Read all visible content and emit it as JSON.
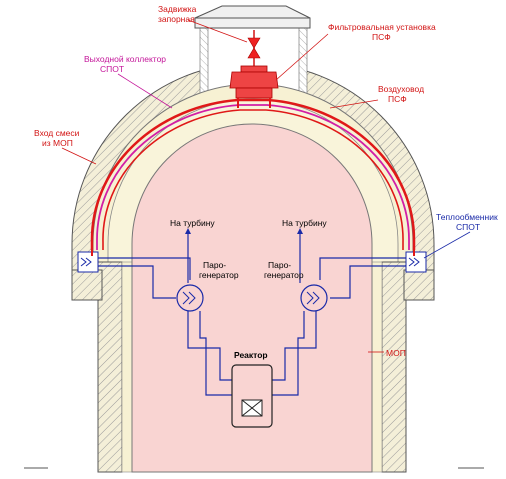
{
  "labels": {
    "valve": [
      "Задвижка",
      "запорная"
    ],
    "filter_unit": [
      "Фильтровальная установка",
      "ПСФ"
    ],
    "outlet_collector": [
      "Выходной коллектор",
      "СПОТ"
    ],
    "air_duct": [
      "Воздуховод",
      "ПСФ"
    ],
    "mixture_inlet": [
      "Вход смеси",
      "из МОП"
    ],
    "heat_exchanger": [
      "Теплообменник",
      "СПОТ"
    ],
    "to_turbine_left": "На турбину",
    "to_turbine_right": "На турбину",
    "steam_gen_left": [
      "Паро-",
      "генератор"
    ],
    "steam_gen_right": [
      "Паро-",
      "генератор"
    ],
    "reactor": "Реактор",
    "mop": "МОП"
  },
  "colors": {
    "containment_fill": "#f9d4d2",
    "wall_fill": "#f2ecd0",
    "hatch": "#8a8a8a",
    "red_pipe": "#e01818",
    "magenta_pipe": "#d21ea6",
    "blue_pipe": "#1a2aa8",
    "label_red": "#d21414",
    "label_magenta": "#c4169a",
    "label_blue": "#1a2aa8"
  }
}
